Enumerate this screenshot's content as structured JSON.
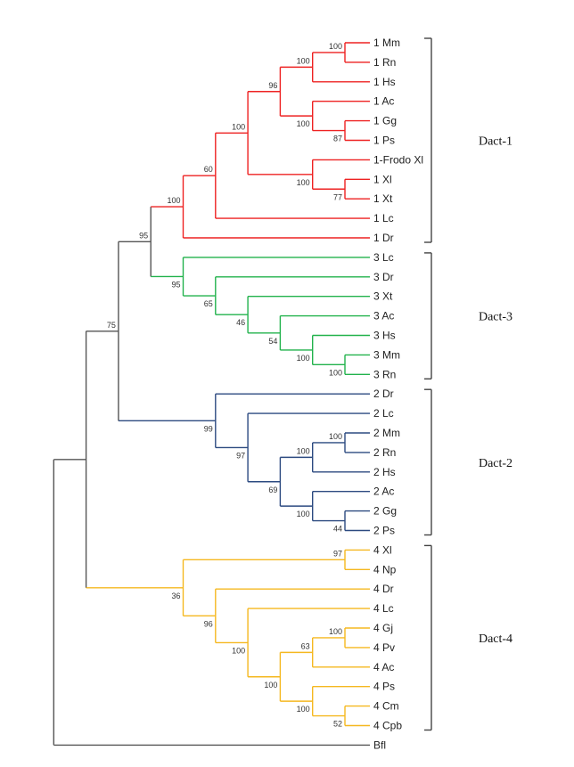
{
  "colors": {
    "default": "#555555",
    "dact1": "#ee2222",
    "dact3": "#22b24c",
    "dact2": "#2c4a80",
    "dact4": "#f5b820",
    "bracket": "#444444"
  },
  "tree": {
    "c": [
      {
        "c": [
          {
            "s": 75,
            "c": [
              {
                "s": 95,
                "c": [
                  {
                    "s": 100,
                    "color": "dact1",
                    "c": [
                      {
                        "s": 60,
                        "c": [
                          {
                            "s": 100,
                            "c": [
                              {
                                "s": 96,
                                "c": [
                                  {
                                    "s": 100,
                                    "c": [
                                      {
                                        "s": 100,
                                        "c": [
                                          "1 Mm",
                                          "1 Rn"
                                        ]
                                      },
                                      "1 Hs"
                                    ]
                                  },
                                  {
                                    "s": 100,
                                    "c": [
                                      "1 Ac",
                                      {
                                        "s": 87,
                                        "c": [
                                          "1 Gg",
                                          "1 Ps"
                                        ]
                                      }
                                    ]
                                  }
                                ]
                              },
                              {
                                "s": 100,
                                "c": [
                                  "1-Frodo Xl",
                                  {
                                    "s": 77,
                                    "c": [
                                      "1 Xl",
                                      "1 Xt"
                                    ]
                                  }
                                ]
                              }
                            ]
                          },
                          "1 Lc"
                        ]
                      },
                      "1 Dr"
                    ]
                  },
                  {
                    "s": 95,
                    "color": "dact3",
                    "c": [
                      "3 Lc",
                      {
                        "s": 65,
                        "c": [
                          "3 Dr",
                          {
                            "s": 46,
                            "c": [
                              "3 Xt",
                              {
                                "s": 54,
                                "c": [
                                  "3 Ac",
                                  {
                                    "s": 100,
                                    "c": [
                                      "3 Hs",
                                      {
                                        "s": 100,
                                        "c": [
                                          "3 Mm",
                                          "3 Rn"
                                        ]
                                      }
                                    ]
                                  }
                                ]
                              }
                            ]
                          }
                        ]
                      }
                    ]
                  }
                ]
              },
              {
                "s": 99,
                "color": "dact2",
                "c": [
                  "2 Dr",
                  {
                    "s": 97,
                    "c": [
                      "2 Lc",
                      {
                        "s": 69,
                        "c": [
                          {
                            "s": 100,
                            "c": [
                              {
                                "s": 100,
                                "c": [
                                  "2 Mm",
                                  "2 Rn"
                                ]
                              },
                              "2 Hs"
                            ]
                          },
                          {
                            "s": 100,
                            "c": [
                              "2 Ac",
                              {
                                "s": 44,
                                "c": [
                                  "2 Gg",
                                  "2 Ps"
                                ]
                              }
                            ]
                          }
                        ]
                      }
                    ]
                  }
                ]
              }
            ]
          },
          {
            "s": 36,
            "color": "dact4",
            "c": [
              {
                "s": 97,
                "c": [
                  "4 Xl",
                  "4 Np"
                ]
              },
              {
                "s": 96,
                "c": [
                  "4 Dr",
                  {
                    "s": 100,
                    "c": [
                      "4 Lc",
                      {
                        "s": 100,
                        "c": [
                          {
                            "s": 63,
                            "c": [
                              {
                                "s": 100,
                                "c": [
                                  "4 Gj",
                                  "4 Pv"
                                ]
                              },
                              "4 Ac"
                            ]
                          },
                          {
                            "s": 100,
                            "c": [
                              "4 Ps",
                              {
                                "s": 52,
                                "c": [
                                  "4 Cm",
                                  "4 Cpb"
                                ]
                              }
                            ]
                          }
                        ]
                      }
                    ]
                  }
                ]
              }
            ]
          }
        ]
      },
      "Bfl"
    ]
  },
  "clades": [
    {
      "label": "Dact-1",
      "first": "1 Mm",
      "last": "1 Dr"
    },
    {
      "label": "Dact-3",
      "first": "3 Lc",
      "last": "3 Rn"
    },
    {
      "label": "Dact-2",
      "first": "2 Dr",
      "last": "2 Ps"
    },
    {
      "label": "Dact-4",
      "first": "4 Xl",
      "last": "4 Cpb"
    }
  ]
}
